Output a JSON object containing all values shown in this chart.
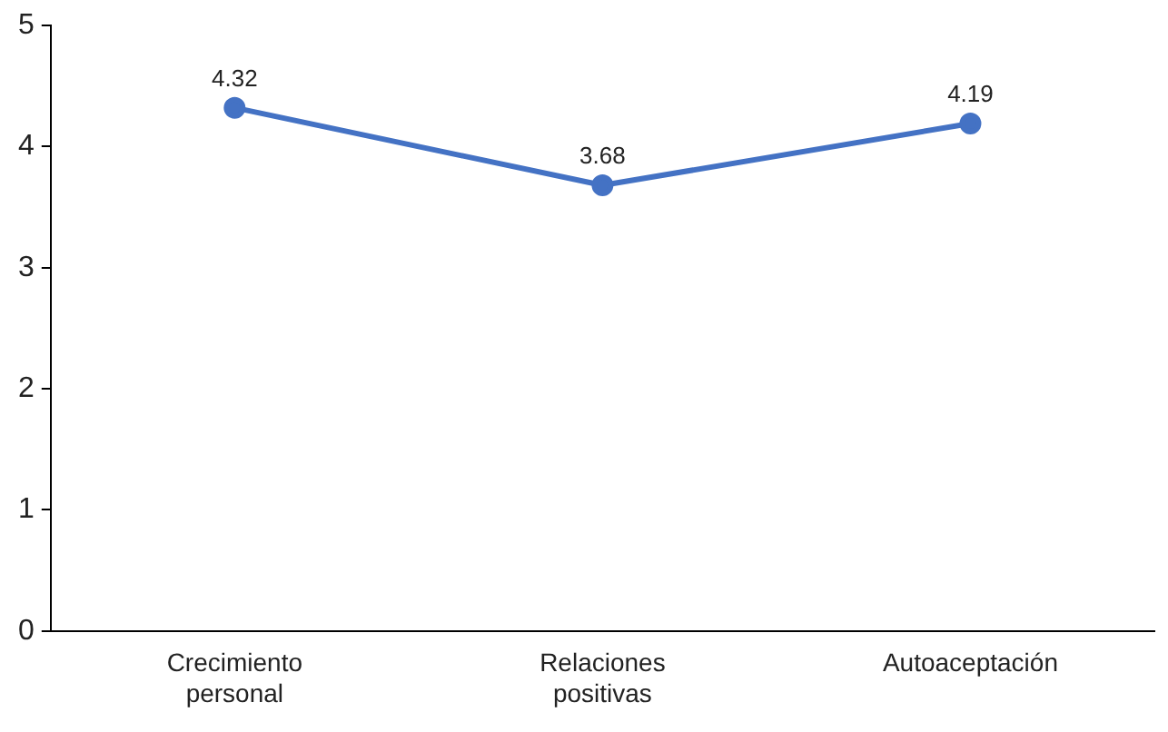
{
  "chart_data": {
    "type": "line",
    "categories": [
      "Crecimiento personal",
      "Relaciones positivas",
      "Autoaceptación"
    ],
    "series": [
      {
        "color": "#4472c4",
        "values": [
          4.32,
          3.68,
          4.19
        ]
      }
    ],
    "ylim": [
      0,
      5
    ],
    "yticks": [
      0,
      1,
      2,
      3,
      4,
      5
    ],
    "grid": false,
    "legend": false,
    "marker": "circle",
    "line_style": "solid",
    "data_labels": true
  }
}
